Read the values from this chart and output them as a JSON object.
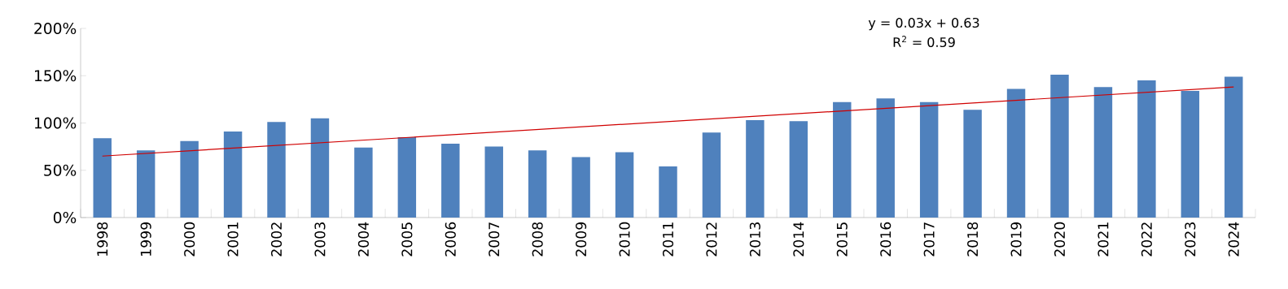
{
  "chart_data": {
    "type": "bar",
    "categories": [
      "1998",
      "1999",
      "2000",
      "2001",
      "2002",
      "2003",
      "2004",
      "2005",
      "2006",
      "2007",
      "2008",
      "2009",
      "2010",
      "2011",
      "2012",
      "2013",
      "2014",
      "2015",
      "2016",
      "2017",
      "2018",
      "2019",
      "2020",
      "2021",
      "2022",
      "2023",
      "2024"
    ],
    "series": [
      {
        "color": "#4f81bd",
        "values": [
          84,
          71,
          81,
          91,
          101,
          105,
          74,
          85,
          78,
          75,
          71,
          64,
          69,
          54,
          90,
          103,
          102,
          122,
          126,
          122,
          114,
          136,
          151,
          138,
          145,
          134,
          149
        ]
      },
      {
        "type": "line",
        "color": "#d00000",
        "values": [
          65,
          null,
          null,
          null,
          null,
          null,
          null,
          null,
          null,
          null,
          null,
          null,
          null,
          null,
          null,
          null,
          null,
          null,
          null,
          null,
          null,
          null,
          null,
          null,
          null,
          null,
          138
        ]
      }
    ],
    "ylim": [
      0,
      200
    ],
    "yticks": [
      {
        "value": 0,
        "label": "0%"
      },
      {
        "value": 50,
        "label": "50%"
      },
      {
        "value": 100,
        "label": "100%"
      },
      {
        "value": 150,
        "label": "150%"
      },
      {
        "value": 200,
        "label": "200%"
      }
    ],
    "grid": false,
    "annotations": [
      "y = 0.03x + 0.63",
      "R$^{2}$ = 0.59"
    ]
  }
}
